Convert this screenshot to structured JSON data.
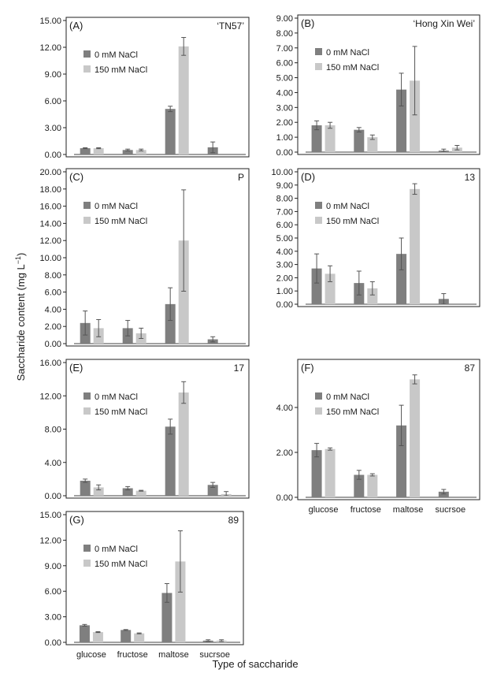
{
  "figure": {
    "ylabel": "Saccharide content (mg L",
    "ylabel_sup": "−1",
    "ylabel_close": ")",
    "xlabel": "Type of saccharide"
  },
  "chart_data": [
    {
      "type": "bar",
      "panel": "(A)",
      "cultivar": "‘TN57’",
      "categories": [
        "glucose",
        "fructose",
        "maltose",
        "sucrsoe"
      ],
      "yticks": [
        "0.00",
        "3.00",
        "6.00",
        "9.00",
        "12.00",
        "15.00"
      ],
      "ylim": [
        0,
        15
      ],
      "show_xlabels": false,
      "legend": "top-left",
      "series": [
        {
          "name": "0 mM NaCl",
          "color": "#7f7f7f",
          "values": [
            0.7,
            0.5,
            5.1,
            0.8
          ],
          "errors": [
            0.05,
            0.1,
            0.3,
            0.6
          ]
        },
        {
          "name": "150 mM NaCl",
          "color": "#c8c8c8",
          "values": [
            0.7,
            0.5,
            12.1,
            0.0
          ],
          "errors": [
            0.05,
            0.1,
            1.0,
            0.0
          ]
        }
      ]
    },
    {
      "type": "bar",
      "panel": "(B)",
      "cultivar": "‘Hong Xin Wei’",
      "categories": [
        "glucose",
        "fructose",
        "maltose",
        "sucrsoe"
      ],
      "yticks": [
        "0.00",
        "1.00",
        "2.00",
        "3.00",
        "4.00",
        "5.00",
        "6.00",
        "7.00",
        "8.00",
        "9.00"
      ],
      "ylim": [
        0,
        9
      ],
      "show_xlabels": false,
      "legend": "top-left",
      "series": [
        {
          "name": "0 mM NaCl",
          "color": "#7f7f7f",
          "values": [
            1.8,
            1.5,
            4.2,
            0.1
          ],
          "errors": [
            0.3,
            0.15,
            1.1,
            0.1
          ]
        },
        {
          "name": "150 mM NaCl",
          "color": "#c8c8c8",
          "values": [
            1.8,
            1.0,
            4.8,
            0.3
          ],
          "errors": [
            0.2,
            0.15,
            2.3,
            0.15
          ]
        }
      ]
    },
    {
      "type": "bar",
      "panel": "(C)",
      "cultivar": "P",
      "categories": [
        "glucose",
        "fructose",
        "maltose",
        "sucrsoe"
      ],
      "yticks": [
        "0.00",
        "2.00",
        "4.00",
        "6.00",
        "8.00",
        "10.00",
        "12.00",
        "14.00",
        "16.00",
        "18.00",
        "20.00"
      ],
      "ylim": [
        0,
        20
      ],
      "show_xlabels": false,
      "legend": "top-left",
      "series": [
        {
          "name": "0 mM NaCl",
          "color": "#7f7f7f",
          "values": [
            2.4,
            1.8,
            4.6,
            0.5
          ],
          "errors": [
            1.4,
            0.9,
            1.9,
            0.3
          ]
        },
        {
          "name": "150 mM NaCl",
          "color": "#c8c8c8",
          "values": [
            1.8,
            1.2,
            12.0,
            0.0
          ],
          "errors": [
            1.0,
            0.6,
            5.9,
            0.0
          ]
        }
      ]
    },
    {
      "type": "bar",
      "panel": "(D)",
      "cultivar": "13",
      "categories": [
        "glucose",
        "fructose",
        "maltose",
        "sucrsoe"
      ],
      "yticks": [
        "0.00",
        "1.00",
        "2.00",
        "3.00",
        "4.00",
        "5.00",
        "6.00",
        "7.00",
        "8.00",
        "9.00",
        "10.00"
      ],
      "ylim": [
        0,
        10
      ],
      "show_xlabels": false,
      "legend": "top-left",
      "series": [
        {
          "name": "0 mM NaCl",
          "color": "#7f7f7f",
          "values": [
            2.7,
            1.6,
            3.8,
            0.4
          ],
          "errors": [
            1.1,
            0.9,
            1.2,
            0.4
          ]
        },
        {
          "name": "150 mM NaCl",
          "color": "#c8c8c8",
          "values": [
            2.3,
            1.2,
            8.7,
            0.0
          ],
          "errors": [
            0.6,
            0.5,
            0.4,
            0.0
          ]
        }
      ]
    },
    {
      "type": "bar",
      "panel": "(E)",
      "cultivar": "17",
      "categories": [
        "glucose",
        "fructose",
        "maltose",
        "sucrsoe"
      ],
      "yticks": [
        "0.00",
        "4.00",
        "8.00",
        "12.00",
        "16.00"
      ],
      "ylim": [
        0,
        16
      ],
      "show_xlabels": false,
      "legend": "top-left",
      "series": [
        {
          "name": "0 mM NaCl",
          "color": "#7f7f7f",
          "values": [
            1.8,
            0.9,
            8.3,
            1.3
          ],
          "errors": [
            0.2,
            0.2,
            0.9,
            0.3
          ]
        },
        {
          "name": "150 mM NaCl",
          "color": "#c8c8c8",
          "values": [
            1.0,
            0.6,
            12.4,
            0.2
          ],
          "errors": [
            0.3,
            0.05,
            1.3,
            0.3
          ]
        }
      ]
    },
    {
      "type": "bar",
      "panel": "(F)",
      "cultivar": "87",
      "categories": [
        "glucose",
        "fructose",
        "maltose",
        "sucrsoe"
      ],
      "yticks": [
        "0.00",
        "2.00",
        "4.00"
      ],
      "ylim": [
        0,
        6
      ],
      "show_xlabels": true,
      "legend": "top-left",
      "series": [
        {
          "name": "0 mM NaCl",
          "color": "#7f7f7f",
          "values": [
            2.1,
            1.0,
            3.2,
            0.25
          ],
          "errors": [
            0.3,
            0.2,
            0.9,
            0.1
          ]
        },
        {
          "name": "150 mM NaCl",
          "color": "#c8c8c8",
          "values": [
            2.15,
            1.0,
            5.25,
            0.0
          ],
          "errors": [
            0.05,
            0.05,
            0.2,
            0.0
          ]
        }
      ]
    },
    {
      "type": "bar",
      "panel": "(G)",
      "cultivar": "89",
      "categories": [
        "glucose",
        "fructose",
        "maltose",
        "sucrsoe"
      ],
      "yticks": [
        "0.00",
        "3.00",
        "6.00",
        "9.00",
        "12.00",
        "15.00"
      ],
      "ylim": [
        0,
        15
      ],
      "show_xlabels": true,
      "legend": "top-left",
      "series": [
        {
          "name": "0 mM NaCl",
          "color": "#7f7f7f",
          "values": [
            2.0,
            1.45,
            5.8,
            0.2
          ],
          "errors": [
            0.1,
            0.05,
            1.1,
            0.1
          ]
        },
        {
          "name": "150 mM NaCl",
          "color": "#c8c8c8",
          "values": [
            1.2,
            1.05,
            9.5,
            0.2
          ],
          "errors": [
            0.05,
            0.05,
            3.6,
            0.1
          ]
        }
      ]
    }
  ]
}
